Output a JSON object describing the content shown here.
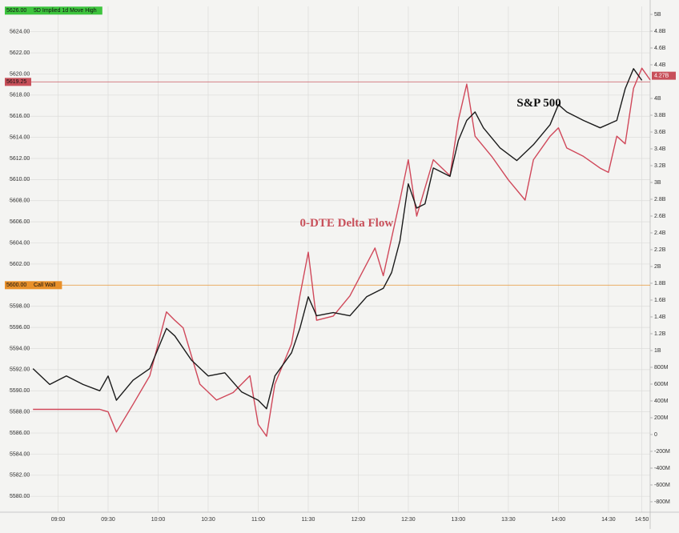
{
  "chart_data": {
    "type": "line",
    "annotations": [
      {
        "text": "S&P 500",
        "color": "#111111",
        "time": "13:35",
        "value": 5617.2
      },
      {
        "text": "0-DTE Delta Flow",
        "color": "#c8505a",
        "time": "11:25",
        "value": 5605.8
      }
    ],
    "xlim": [
      "08:30",
      "14:55"
    ],
    "xticks": [
      "09:00",
      "09:30",
      "10:00",
      "10:30",
      "11:00",
      "11:30",
      "12:00",
      "12:30",
      "13:00",
      "13:30",
      "14:00",
      "14:30",
      "14:50"
    ],
    "ylim": [
      5578.5,
      5626.4
    ],
    "yticks": [
      {
        "value": 5580,
        "label": "5580.00"
      },
      {
        "value": 5582,
        "label": "5582.00"
      },
      {
        "value": 5584,
        "label": "5584.00"
      },
      {
        "value": 5586,
        "label": "5586.00"
      },
      {
        "value": 5588,
        "label": "5588.00"
      },
      {
        "value": 5590,
        "label": "5590.00"
      },
      {
        "value": 5592,
        "label": "5592.00"
      },
      {
        "value": 5594,
        "label": "5594.00"
      },
      {
        "value": 5596,
        "label": "5596.00"
      },
      {
        "value": 5598,
        "label": "5598.00"
      },
      {
        "value": 5602,
        "label": "5602.00"
      },
      {
        "value": 5604,
        "label": "5604.00"
      },
      {
        "value": 5606,
        "label": "5606.00"
      },
      {
        "value": 5608,
        "label": "5608.00"
      },
      {
        "value": 5610,
        "label": "5610.00"
      },
      {
        "value": 5612,
        "label": "5612.00"
      },
      {
        "value": 5614,
        "label": "5614.00"
      },
      {
        "value": 5616,
        "label": "5616.00"
      },
      {
        "value": 5618,
        "label": "5618.00"
      },
      {
        "value": 5620,
        "label": "5620.00"
      },
      {
        "value": 5622,
        "label": "5622.00"
      },
      {
        "value": 5624,
        "label": "5624.00"
      }
    ],
    "y2lim": [
      -0.924,
      5.095
    ],
    "y2ticks": [
      {
        "value": -0.8,
        "label": "-800M"
      },
      {
        "value": -0.6,
        "label": "-600M"
      },
      {
        "value": -0.4,
        "label": "-400M"
      },
      {
        "value": -0.2,
        "label": "-200M"
      },
      0,
      {
        "value": 0.2,
        "label": "200M"
      },
      {
        "value": 0.4,
        "label": "400M"
      },
      {
        "value": 0.6,
        "label": "600M"
      },
      {
        "value": 0.8,
        "label": "800M"
      },
      {
        "value": 1,
        "label": "1B"
      },
      {
        "value": 1.2,
        "label": "1.2B"
      },
      {
        "value": 1.4,
        "label": "1.4B"
      },
      {
        "value": 1.6,
        "label": "1.6B"
      },
      {
        "value": 1.8,
        "label": "1.8B"
      },
      {
        "value": 2,
        "label": "2B"
      },
      {
        "value": 2.2,
        "label": "2.2B"
      },
      {
        "value": 2.4,
        "label": "2.4B"
      },
      {
        "value": 2.6,
        "label": "2.6B"
      },
      {
        "value": 2.8,
        "label": "2.8B"
      },
      {
        "value": 3,
        "label": "3B"
      },
      {
        "value": 3.2,
        "label": "3.2B"
      },
      {
        "value": 3.4,
        "label": "3.4B"
      },
      {
        "value": 3.6,
        "label": "3.6B"
      },
      {
        "value": 3.8,
        "label": "3.8B"
      },
      {
        "value": 4,
        "label": "4B"
      },
      {
        "value": 4.4,
        "label": "4.4B"
      },
      {
        "value": 4.6,
        "label": "4.6B"
      },
      {
        "value": 4.8,
        "label": "4.8B"
      },
      {
        "value": 5,
        "label": "5B"
      }
    ],
    "grid": true,
    "reference_lines": [
      {
        "value": 5626,
        "label": "5626.00",
        "text": "5D Implied 1d Move High",
        "color": "#3ec43e",
        "line": false
      },
      {
        "value": 5619.25,
        "label": "5619.25",
        "color": "#c8505a",
        "line": true
      },
      {
        "value": 5600,
        "label": "5600.00",
        "text": "Call Wall",
        "color": "#e8902a",
        "line": true
      }
    ],
    "y2_markers": [
      {
        "value": 4.27,
        "label": "4.27B",
        "color": "#c8505a"
      }
    ],
    "series": [
      {
        "name": "0-DTE Delta Flow",
        "color": "#d0485a",
        "axis": "y2",
        "x": [
          "08:45",
          "09:25",
          "09:30",
          "09:35",
          "09:45",
          "09:55",
          "10:05",
          "10:10",
          "10:15",
          "10:25",
          "10:35",
          "10:45",
          "10:55",
          "11:00",
          "11:05",
          "11:10",
          "11:20",
          "11:25",
          "11:30",
          "11:35",
          "11:45",
          "11:55",
          "12:05",
          "12:10",
          "12:15",
          "12:25",
          "12:30",
          "12:35",
          "12:45",
          "12:55",
          "13:00",
          "13:05",
          "13:10",
          "13:20",
          "13:30",
          "13:40",
          "13:45",
          "13:55",
          "14:00",
          "14:05",
          "14:15",
          "14:25",
          "14:30",
          "14:35",
          "14:40",
          "14:45",
          "14:50",
          "14:55"
        ],
        "values": [
          0.3,
          0.3,
          0.27,
          0.03,
          0.36,
          0.7,
          1.46,
          1.36,
          1.27,
          0.6,
          0.41,
          0.5,
          0.7,
          0.12,
          -0.02,
          0.6,
          1.08,
          1.65,
          2.17,
          1.36,
          1.41,
          1.65,
          2.03,
          2.22,
          1.89,
          2.79,
          3.27,
          2.6,
          3.27,
          3.08,
          3.74,
          4.17,
          3.55,
          3.31,
          3.03,
          2.79,
          3.27,
          3.55,
          3.65,
          3.41,
          3.31,
          3.17,
          3.12,
          3.55,
          3.46,
          4.12,
          4.36,
          4.22
        ]
      },
      {
        "name": "S&P 500",
        "color": "#1a1a1a",
        "x": [
          "08:45",
          "08:55",
          "09:05",
          "09:15",
          "09:25",
          "09:30",
          "09:35",
          "09:45",
          "09:55",
          "10:05",
          "10:10",
          "10:20",
          "10:30",
          "10:40",
          "10:50",
          "11:00",
          "11:05",
          "11:10",
          "11:20",
          "11:25",
          "11:30",
          "11:35",
          "11:45",
          "11:55",
          "12:05",
          "12:15",
          "12:20",
          "12:25",
          "12:30",
          "12:35",
          "12:40",
          "12:45",
          "12:55",
          "13:00",
          "13:05",
          "13:10",
          "13:15",
          "13:25",
          "13:35",
          "13:45",
          "13:55",
          "14:00",
          "14:05",
          "14:15",
          "14:25",
          "14:35",
          "14:40",
          "14:45",
          "14:50"
        ],
        "values": [
          5592.1,
          5590.6,
          5591.4,
          5590.6,
          5590.0,
          5591.4,
          5589.1,
          5591.0,
          5592.1,
          5595.9,
          5595.2,
          5592.9,
          5591.4,
          5591.7,
          5589.9,
          5589.1,
          5588.3,
          5591.4,
          5593.6,
          5595.9,
          5598.9,
          5597.1,
          5597.4,
          5597.1,
          5598.9,
          5599.7,
          5601.2,
          5604.2,
          5609.6,
          5607.3,
          5607.7,
          5611.1,
          5610.3,
          5613.7,
          5615.6,
          5616.4,
          5614.9,
          5613.0,
          5611.8,
          5613.3,
          5615.2,
          5617.1,
          5616.4,
          5615.6,
          5614.9,
          5615.6,
          5618.6,
          5620.5,
          5619.4
        ]
      }
    ]
  }
}
